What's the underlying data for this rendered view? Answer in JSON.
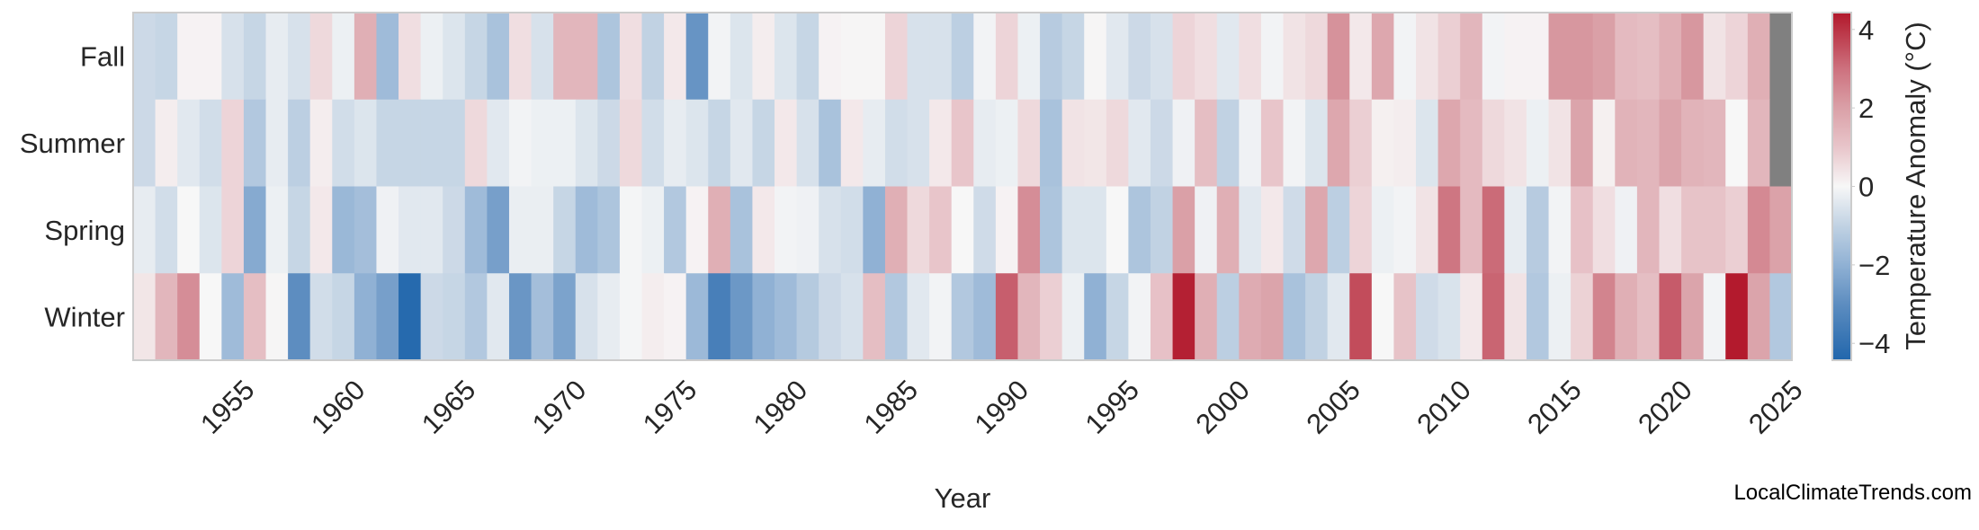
{
  "chart_data": {
    "type": "heatmap",
    "title": "",
    "xlabel": "Year",
    "ylabel": "",
    "colorbar_label": "Temperature Anomaly (°C)",
    "colorbar_ticks": [
      "−4",
      "−2",
      "0",
      "2",
      "4"
    ],
    "colorbar_tick_values": [
      -4,
      -2,
      0,
      2,
      4
    ],
    "value_range": [
      -4.43,
      4.43
    ],
    "colormap_stops": [
      {
        "value": -4.43,
        "color": "#2166ac"
      },
      {
        "value": -3.0,
        "color": "#5d8dc0"
      },
      {
        "value": -2.0,
        "color": "#90b1d4"
      },
      {
        "value": -1.0,
        "color": "#c1d2e3"
      },
      {
        "value": 0.0,
        "color": "#f7f7f7"
      },
      {
        "value": 1.0,
        "color": "#e8c5ca"
      },
      {
        "value": 2.0,
        "color": "#daa0a7"
      },
      {
        "value": 3.0,
        "color": "#cd717e"
      },
      {
        "value": 4.43,
        "color": "#b2182b"
      }
    ],
    "missing_color": "#808080",
    "grid": false,
    "x_tick_labels": [
      "1955",
      "1960",
      "1965",
      "1970",
      "1975",
      "1980",
      "1985",
      "1990",
      "1995",
      "2000",
      "2005",
      "2010",
      "2015",
      "2020",
      "2025"
    ],
    "years": [
      1951,
      1952,
      1953,
      1954,
      1955,
      1956,
      1957,
      1958,
      1959,
      1960,
      1961,
      1962,
      1963,
      1964,
      1965,
      1966,
      1967,
      1968,
      1969,
      1970,
      1971,
      1972,
      1973,
      1974,
      1975,
      1976,
      1977,
      1978,
      1979,
      1980,
      1981,
      1982,
      1983,
      1984,
      1985,
      1986,
      1987,
      1988,
      1989,
      1990,
      1991,
      1992,
      1993,
      1994,
      1995,
      1996,
      1997,
      1998,
      1999,
      2000,
      2001,
      2002,
      2003,
      2004,
      2005,
      2006,
      2007,
      2008,
      2009,
      2010,
      2011,
      2012,
      2013,
      2014,
      2015,
      2016,
      2017,
      2018,
      2019,
      2020,
      2021,
      2022,
      2023,
      2024,
      2025
    ],
    "series": [
      {
        "name": "Fall",
        "values": [
          -0.8,
          -0.9,
          0.1,
          0.1,
          -0.6,
          -0.9,
          -0.3,
          -0.6,
          0.6,
          -0.2,
          1.6,
          -1.7,
          0.5,
          -0.2,
          -0.5,
          -0.9,
          -1.5,
          0.5,
          -0.6,
          1.4,
          1.4,
          -1.4,
          0.5,
          -1.0,
          0.3,
          -2.8,
          -0.1,
          -0.5,
          0.2,
          -0.5,
          -0.9,
          0.1,
          0.05,
          0.05,
          0.7,
          -0.6,
          -0.6,
          -1.1,
          -0.1,
          0.7,
          -0.2,
          -1.2,
          -0.9,
          0.05,
          -0.4,
          -0.8,
          -0.6,
          0.7,
          0.5,
          -0.4,
          0.5,
          -0.1,
          0.4,
          0.6,
          2.3,
          0.3,
          1.8,
          -0.1,
          0.4,
          0.8,
          1.4,
          -0.1,
          0.1,
          0.1,
          2.2,
          2.2,
          2.0,
          1.3,
          1.2,
          1.6,
          2.2,
          0.4,
          0.7,
          1.6,
          null
        ]
      },
      {
        "name": "Summer",
        "values": [
          -0.8,
          0.2,
          -0.4,
          -0.7,
          0.7,
          -1.3,
          -0.3,
          -1.1,
          0.2,
          -0.7,
          -0.5,
          -0.9,
          -0.9,
          -0.9,
          -0.9,
          0.6,
          -0.4,
          -0.1,
          -0.2,
          -0.2,
          -0.5,
          -0.8,
          0.6,
          -0.7,
          -0.3,
          -0.5,
          -0.9,
          -0.4,
          -0.9,
          0.3,
          -0.6,
          -1.5,
          0.3,
          -0.3,
          -0.7,
          -0.6,
          0.3,
          1.0,
          -0.3,
          -0.2,
          0.6,
          -1.5,
          0.4,
          0.35,
          0.6,
          -0.4,
          -0.8,
          -0.15,
          1.2,
          -1.0,
          -0.15,
          1.0,
          -0.1,
          -0.5,
          1.8,
          0.8,
          0.15,
          0.2,
          -0.5,
          1.8,
          1.3,
          0.6,
          0.4,
          -0.2,
          0.4,
          1.9,
          0.15,
          1.5,
          1.4,
          1.9,
          1.5,
          1.4,
          0.0,
          1.4,
          null
        ]
      },
      {
        "name": "Spring",
        "values": [
          -0.3,
          -0.7,
          0.0,
          -0.5,
          0.7,
          -2.2,
          -0.2,
          -0.9,
          0.3,
          -1.8,
          -1.6,
          -0.15,
          -0.4,
          -0.4,
          -0.8,
          -1.7,
          -2.5,
          -0.25,
          -0.25,
          -0.9,
          -1.7,
          -1.4,
          -0.05,
          -0.2,
          -1.3,
          0.1,
          1.6,
          -1.5,
          0.3,
          -0.1,
          -0.15,
          -0.6,
          -0.7,
          -2.0,
          1.6,
          0.6,
          1.0,
          0.0,
          -0.75,
          0.1,
          2.4,
          -1.4,
          -0.5,
          -0.5,
          0.0,
          -1.4,
          -1.0,
          2.0,
          -0.15,
          1.6,
          -0.4,
          0.3,
          -0.75,
          1.8,
          -1.1,
          0.7,
          -0.2,
          -0.1,
          0.4,
          2.9,
          1.3,
          3.1,
          -0.3,
          -1.2,
          -0.1,
          1.1,
          0.5,
          -0.15,
          1.4,
          0.5,
          1.05,
          1.05,
          0.8,
          2.5,
          1.95
        ]
      },
      {
        "name": "Winter",
        "values": [
          0.35,
          1.4,
          2.4,
          0.0,
          -1.7,
          1.2,
          0.05,
          -3.0,
          -0.7,
          -0.9,
          -2.0,
          -2.5,
          -4.3,
          -0.8,
          -0.9,
          -1.3,
          -0.4,
          -2.75,
          -1.6,
          -2.4,
          -0.6,
          -0.3,
          -0.05,
          0.2,
          0.1,
          -1.75,
          -3.5,
          -2.7,
          -2.0,
          -1.7,
          -1.25,
          -0.8,
          -0.6,
          1.2,
          -1.3,
          -0.4,
          -0.1,
          -1.3,
          -1.7,
          3.3,
          1.4,
          0.8,
          -0.2,
          -2.0,
          -0.9,
          -0.1,
          1.1,
          4.3,
          1.6,
          -1.1,
          1.7,
          1.9,
          -1.5,
          -1.0,
          -0.4,
          3.6,
          0.0,
          1.05,
          -0.75,
          -0.55,
          0.3,
          3.2,
          0.4,
          -1.3,
          -0.2,
          0.75,
          2.6,
          1.6,
          1.2,
          3.35,
          1.9,
          -0.1,
          4.4,
          1.9,
          -1.3
        ]
      }
    ]
  },
  "watermark": "LocalClimateTrends.com"
}
